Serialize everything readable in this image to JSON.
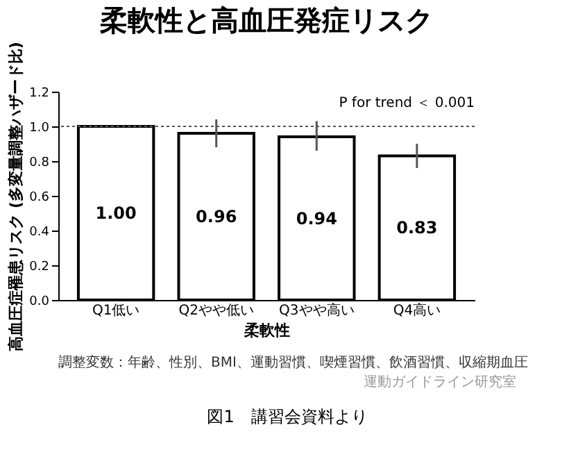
{
  "chart_data": {
    "type": "bar",
    "title": "柔軟性と高血圧発症リスク",
    "categories": [
      "Q1低い",
      "Q2やや低い",
      "Q3やや高い",
      "Q4高い"
    ],
    "values": [
      1.0,
      0.96,
      0.94,
      0.83
    ],
    "value_labels": [
      "1.00",
      "0.96",
      "0.94",
      "0.83"
    ],
    "errors": [
      null,
      [
        0.88,
        1.04
      ],
      [
        0.86,
        1.03
      ],
      [
        0.76,
        0.9
      ]
    ],
    "color": "#ffffff",
    "xlabel": "柔軟性",
    "ylabel": "高血圧症罹患リスク (多変量調整ハザード比)",
    "ylim": [
      0,
      1.2
    ],
    "yticks": [
      {
        "value": 0,
        "label": "0.0"
      },
      {
        "value": 0.2,
        "label": "0.2"
      },
      {
        "value": 0.4,
        "label": "0.4"
      },
      {
        "value": 0.6,
        "label": "0.6"
      },
      {
        "value": 0.8,
        "label": "0.8"
      },
      {
        "value": 1,
        "label": "1.0"
      },
      {
        "value": 1.2,
        "label": "1.2"
      }
    ],
    "grid": false,
    "ref_lines": [
      {
        "axis": "y",
        "value": 1.0,
        "label": null,
        "line_style": "dotted",
        "color": "#555555"
      }
    ],
    "annotations": [
      "P for trend ＜ 0.001",
      "調整変数：年齢、性別、BMI、運動習慣、喫煙習慣、飲酒習慣、収縮期血圧",
      "運動ガイドライン研究室",
      "図1　講習会資料より"
    ]
  }
}
